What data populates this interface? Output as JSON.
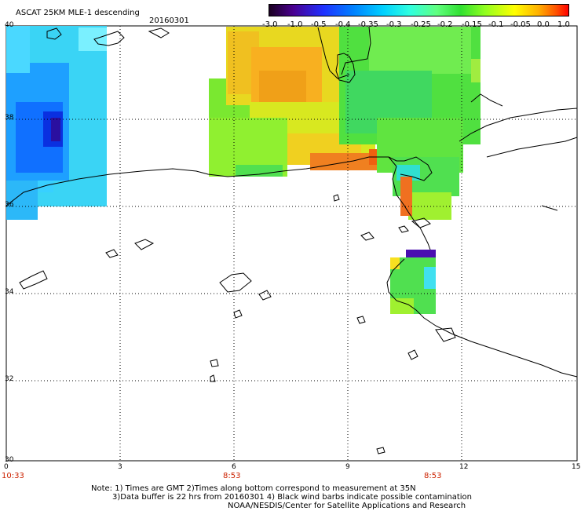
{
  "header": {
    "title": "ASCAT 25KM MLE-1 descending",
    "date": "20160301"
  },
  "colorbar": {
    "labels": [
      "-3.0",
      "-1.0",
      "-0.5",
      "-0.4",
      "-0.35",
      "-0.3",
      "-0.25",
      "-0.2",
      "-0.15",
      "-0.1",
      "-0.05",
      "0.0",
      "1.0"
    ],
    "colors": [
      "#1a0020",
      "#5a00a0",
      "#1a2cff",
      "#0090ff",
      "#00e0ff",
      "#40ffd0",
      "#70ff70",
      "#3ee03e",
      "#a0ff20",
      "#ffff00",
      "#ffb000",
      "#ff6000",
      "#ff0000"
    ]
  },
  "axes": {
    "y_ticks": [
      "40",
      "38",
      "36",
      "34",
      "32",
      "30"
    ],
    "x_ticks": [
      "0",
      "3",
      "6",
      "9",
      "12",
      "15"
    ],
    "times": [
      "10:33",
      "8:53",
      "8:53"
    ]
  },
  "notes": {
    "line1": "Note: 1) Times are GMT 2)Times along bottom correspond to measurement at 35N",
    "line2": "3)Data buffer is 22 hrs from 20160301 4) Black wind barbs indicate possible contamination",
    "line3": "NOAA/NESDIS/Center for Satellite Applications and Research"
  }
}
